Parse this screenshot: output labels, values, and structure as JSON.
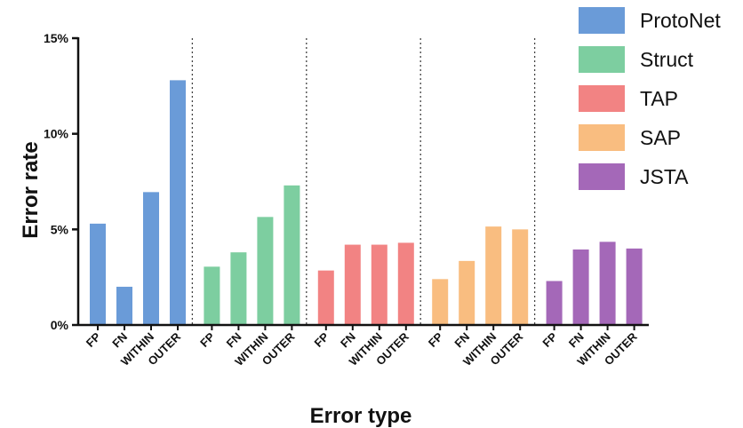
{
  "chart_data": {
    "type": "bar",
    "xlabel": "Error type",
    "ylabel": "Error rate",
    "ylim": [
      0,
      15
    ],
    "yticks": [
      0,
      5,
      10,
      15
    ],
    "ytick_labels": [
      "0%",
      "5%",
      "10%",
      "15%"
    ],
    "grid": false,
    "legend_position": "right",
    "categories": [
      "FP",
      "FN",
      "WITHIN",
      "OUTER"
    ],
    "series": [
      {
        "name": "ProtoNet",
        "color": "#6a9bd8",
        "values": [
          5.3,
          2.0,
          6.95,
          12.8
        ]
      },
      {
        "name": "Struct",
        "color": "#7dcea0",
        "values": [
          3.05,
          3.8,
          5.65,
          7.3
        ]
      },
      {
        "name": "TAP",
        "color": "#f28383",
        "values": [
          2.85,
          4.2,
          4.2,
          4.3
        ]
      },
      {
        "name": "SAP",
        "color": "#f9bd80",
        "values": [
          2.4,
          3.35,
          5.15,
          5.0
        ]
      },
      {
        "name": "JSTA",
        "color": "#a468b8",
        "values": [
          2.3,
          3.95,
          4.35,
          4.0
        ]
      }
    ]
  }
}
